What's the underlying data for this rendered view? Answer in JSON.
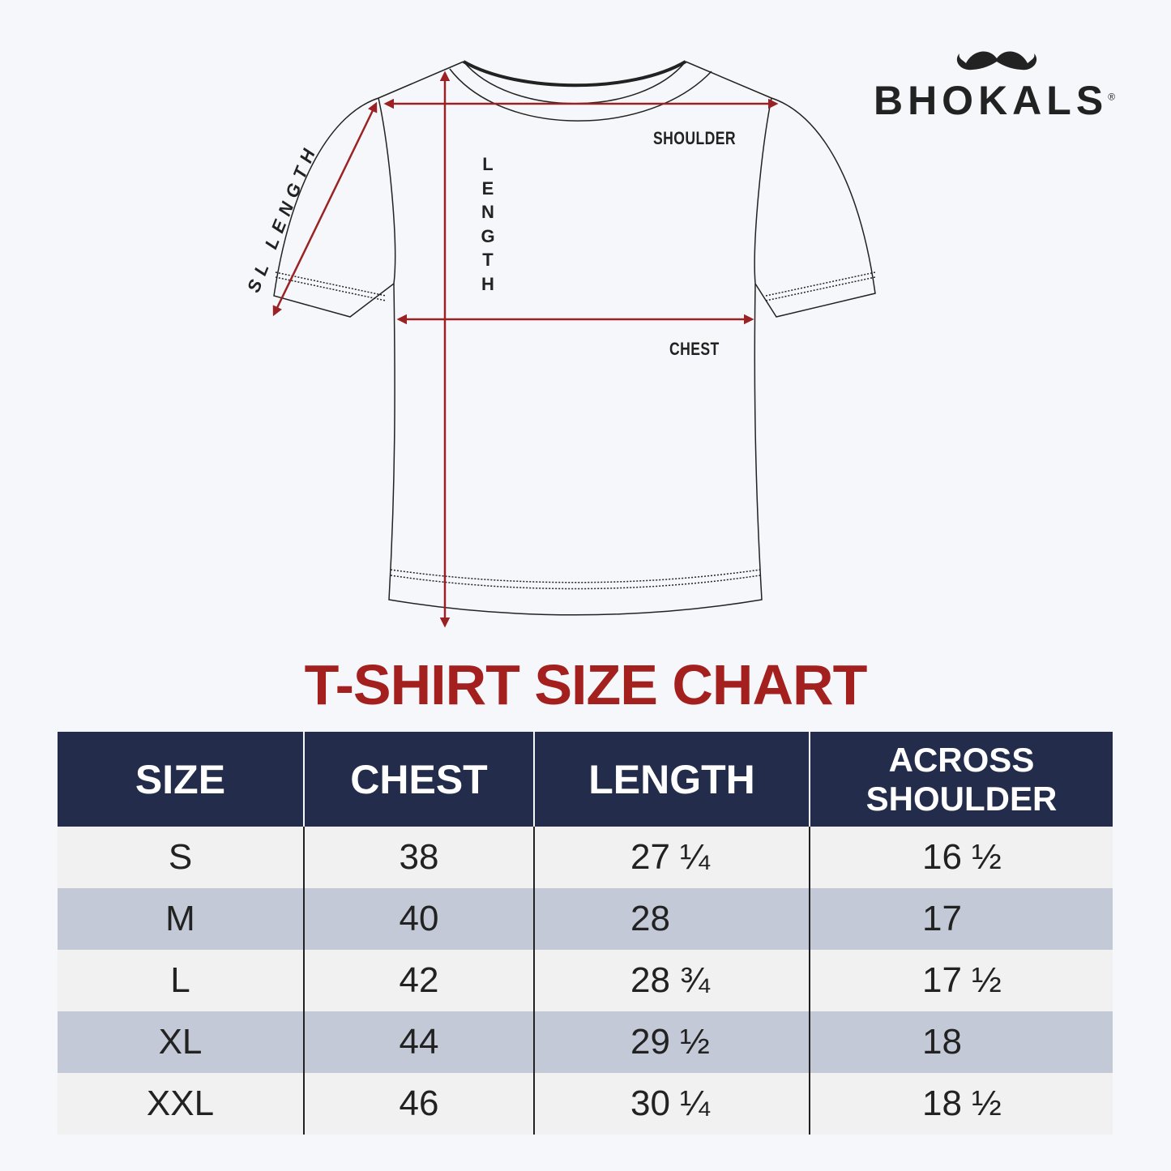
{
  "brand": {
    "name": "BHOKALS",
    "registered": "®"
  },
  "diagram": {
    "labels": {
      "shoulder": "SHOULDER",
      "chest": "CHEST",
      "length": "LENGTH",
      "sleeve_length": "SL LENGTH"
    },
    "arrow_color": "#9b2224"
  },
  "title": "T-SHIRT SIZE CHART",
  "table": {
    "headers": [
      "SIZE",
      "CHEST",
      "LENGTH",
      "ACROSS SHOULDER"
    ],
    "rows": [
      [
        "S",
        "38",
        "27 ¼",
        "16 ½"
      ],
      [
        "M",
        "40",
        "28",
        "17"
      ],
      [
        "L",
        "42",
        "28 ¾",
        "17 ½"
      ],
      [
        "XL",
        "44",
        "29 ½",
        "18"
      ],
      [
        "XXL",
        "46",
        "30 ¼",
        "18 ½"
      ]
    ]
  },
  "colors": {
    "header_bg": "#232c4a",
    "row_dark": "#c3c9d6",
    "row_light": "#f1f1f2",
    "title": "#a3201e"
  }
}
